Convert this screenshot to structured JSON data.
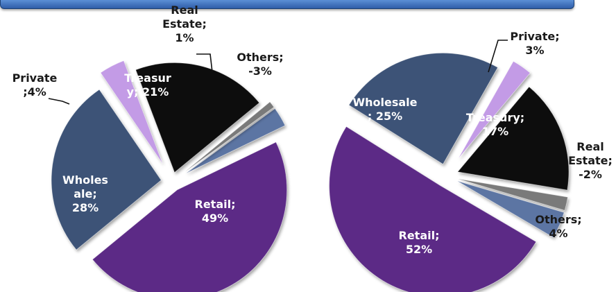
{
  "colors": {
    "header": "#3b6fbe",
    "retail": "#5c2a86",
    "wholesale": "#3d5377",
    "treasury": "#111111",
    "private": "#c39be6",
    "real_estate": "#7a7a7a",
    "others": "#5b74a3"
  },
  "chart_data": [
    {
      "type": "pie",
      "title": "",
      "exploded": true,
      "slices": [
        {
          "name": "Retail",
          "value": 49,
          "label": "Retail;\n49%",
          "color": "#5c2a86"
        },
        {
          "name": "Wholesale",
          "value": 28,
          "label": "Wholes\nale;\n28%",
          "color": "#3d5377"
        },
        {
          "name": "Private",
          "value": 4,
          "label": "Private\n;4%",
          "color": "#c39be6"
        },
        {
          "name": "Treasury",
          "value": 21,
          "label": "Treasur\ny; 21%",
          "color": "#111111"
        },
        {
          "name": "Real Estate",
          "value": 1,
          "label": "Real\nEstate;\n1%",
          "color": "#7a7a7a"
        },
        {
          "name": "Others",
          "value": -3,
          "label": "Others;\n-3%",
          "color": "#5b74a3"
        }
      ]
    },
    {
      "type": "pie",
      "title": "",
      "exploded": true,
      "slices": [
        {
          "name": "Retail",
          "value": 52,
          "label": "Retail;\n52%",
          "color": "#5c2a86"
        },
        {
          "name": "Wholesale",
          "value": 25,
          "label": "Wholesale\n; 25%",
          "color": "#3d5377"
        },
        {
          "name": "Private",
          "value": 3,
          "label": "Private;\n3%",
          "color": "#c39be6"
        },
        {
          "name": "Treasury",
          "value": 17,
          "label": "Treasury;\n17%",
          "color": "#111111"
        },
        {
          "name": "Real Estate",
          "value": -2,
          "label": "Real\nEstate;\n-2%",
          "color": "#7a7a7a"
        },
        {
          "name": "Others",
          "value": 4,
          "label": "Others;\n4%",
          "color": "#5b74a3"
        }
      ]
    }
  ]
}
